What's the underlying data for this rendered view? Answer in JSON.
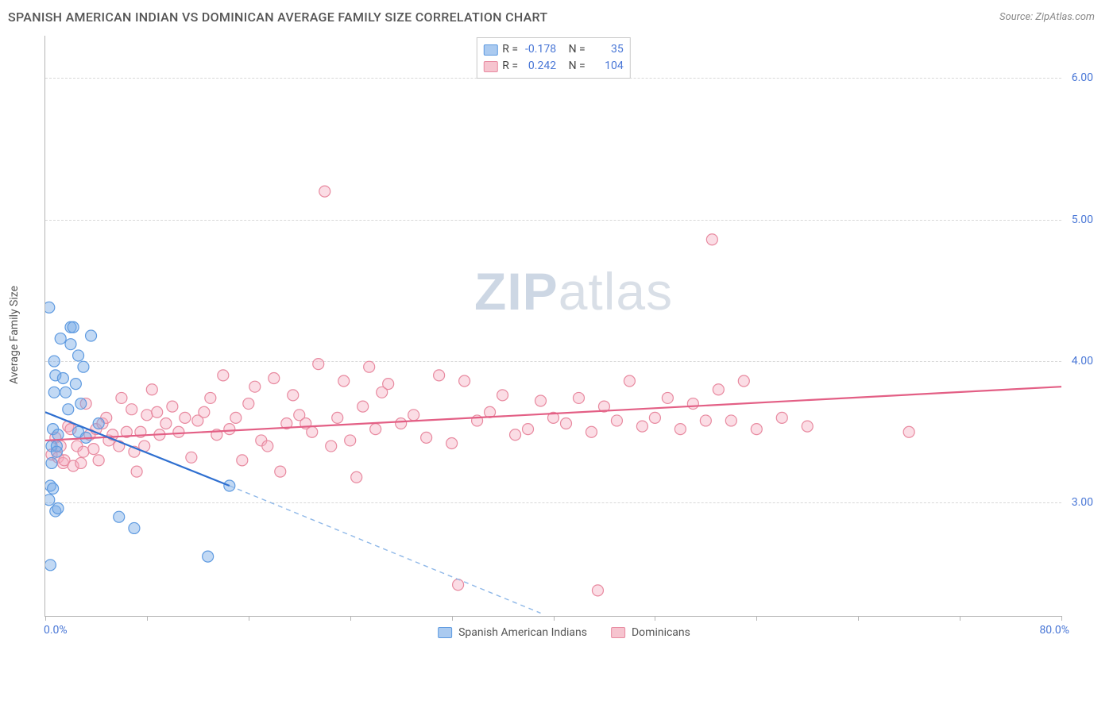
{
  "header": {
    "title": "SPANISH AMERICAN INDIAN VS DOMINICAN AVERAGE FAMILY SIZE CORRELATION CHART",
    "source": "Source: ZipAtlas.com"
  },
  "watermark": {
    "prefix": "ZIP",
    "suffix": "atlas"
  },
  "chart": {
    "type": "scatter",
    "y_label": "Average Family Size",
    "x_min_label": "0.0%",
    "x_max_label": "80.0%",
    "xlim": [
      0,
      80
    ],
    "ylim": [
      2.2,
      6.3
    ],
    "y_ticks": [
      3.0,
      4.0,
      5.0,
      6.0
    ],
    "y_tick_labels": [
      "3.00",
      "4.00",
      "5.00",
      "6.00"
    ],
    "x_tick_positions": [
      0,
      8,
      16,
      24,
      32,
      40,
      48,
      56,
      64,
      72,
      80
    ],
    "grid_color": "#d8d8d8",
    "axis_color": "#b5b5b5",
    "background_color": "#ffffff"
  },
  "stats_legend": {
    "rows": [
      {
        "swatch_fill": "#aacaf0",
        "swatch_border": "#5e9ae0",
        "r_label": "R =",
        "r_val": "-0.178",
        "n_label": "N =",
        "n_val": "35"
      },
      {
        "swatch_fill": "#f6c4cf",
        "swatch_border": "#e88aa0",
        "r_label": "R =",
        "r_val": "0.242",
        "n_label": "N =",
        "n_val": "104"
      }
    ]
  },
  "bottom_legend": {
    "items": [
      {
        "swatch_fill": "#aacaf0",
        "swatch_border": "#5e9ae0",
        "label": "Spanish American Indians"
      },
      {
        "swatch_fill": "#f6c4cf",
        "swatch_border": "#e88aa0",
        "label": "Dominicans"
      }
    ]
  },
  "series": {
    "blue": {
      "marker_radius": 7,
      "fill": "rgba(120,170,230,0.45)",
      "stroke": "#5e9ae0",
      "stroke_width": 1.2,
      "trend": {
        "solid": {
          "x1": 0,
          "y1": 3.64,
          "x2": 14.5,
          "y2": 3.12,
          "color": "#2e6fd0",
          "width": 2.2
        },
        "dashed": {
          "x1": 14.5,
          "y1": 3.12,
          "x2": 39,
          "y2": 2.22,
          "color": "#8fb8e8",
          "width": 1.4,
          "dash": "6,5"
        }
      },
      "points": [
        [
          0.3,
          4.38
        ],
        [
          0.3,
          3.02
        ],
        [
          0.4,
          2.56
        ],
        [
          0.4,
          3.12
        ],
        [
          0.5,
          3.28
        ],
        [
          0.5,
          3.4
        ],
        [
          0.6,
          3.1
        ],
        [
          0.6,
          3.52
        ],
        [
          0.7,
          3.78
        ],
        [
          0.7,
          4.0
        ],
        [
          0.8,
          2.94
        ],
        [
          0.8,
          3.9
        ],
        [
          0.9,
          3.4
        ],
        [
          0.9,
          3.36
        ],
        [
          1.0,
          3.48
        ],
        [
          1.0,
          2.96
        ],
        [
          1.2,
          4.16
        ],
        [
          1.4,
          3.88
        ],
        [
          1.6,
          3.78
        ],
        [
          1.8,
          3.66
        ],
        [
          2.0,
          4.12
        ],
        [
          2.0,
          4.24
        ],
        [
          2.2,
          4.24
        ],
        [
          2.4,
          3.84
        ],
        [
          2.6,
          4.04
        ],
        [
          2.6,
          3.5
        ],
        [
          2.8,
          3.7
        ],
        [
          3.0,
          3.96
        ],
        [
          3.2,
          3.46
        ],
        [
          3.6,
          4.18
        ],
        [
          4.2,
          3.56
        ],
        [
          5.8,
          2.9
        ],
        [
          7.0,
          2.82
        ],
        [
          12.8,
          2.62
        ],
        [
          14.5,
          3.12
        ]
      ]
    },
    "pink": {
      "marker_radius": 7,
      "fill": "rgba(244,170,190,0.40)",
      "stroke": "#e88aa0",
      "stroke_width": 1.2,
      "trend": {
        "solid": {
          "x1": 0,
          "y1": 3.44,
          "x2": 80,
          "y2": 3.82,
          "color": "#e35f85",
          "width": 2.2
        }
      },
      "points": [
        [
          0.5,
          3.34
        ],
        [
          0.8,
          3.46
        ],
        [
          1.0,
          3.32
        ],
        [
          1.2,
          3.4
        ],
        [
          1.4,
          3.28
        ],
        [
          1.5,
          3.3
        ],
        [
          1.8,
          3.54
        ],
        [
          2.0,
          3.52
        ],
        [
          2.2,
          3.26
        ],
        [
          2.5,
          3.4
        ],
        [
          2.8,
          3.28
        ],
        [
          3.0,
          3.36
        ],
        [
          3.2,
          3.7
        ],
        [
          3.5,
          3.48
        ],
        [
          3.8,
          3.38
        ],
        [
          4.0,
          3.52
        ],
        [
          4.2,
          3.3
        ],
        [
          4.5,
          3.56
        ],
        [
          4.8,
          3.6
        ],
        [
          5.0,
          3.44
        ],
        [
          5.3,
          3.48
        ],
        [
          5.8,
          3.4
        ],
        [
          6.0,
          3.74
        ],
        [
          6.4,
          3.5
        ],
        [
          6.8,
          3.66
        ],
        [
          7.0,
          3.36
        ],
        [
          7.2,
          3.22
        ],
        [
          7.5,
          3.5
        ],
        [
          7.8,
          3.4
        ],
        [
          8.0,
          3.62
        ],
        [
          8.4,
          3.8
        ],
        [
          8.8,
          3.64
        ],
        [
          9.0,
          3.48
        ],
        [
          9.5,
          3.56
        ],
        [
          10.0,
          3.68
        ],
        [
          10.5,
          3.5
        ],
        [
          11.0,
          3.6
        ],
        [
          11.5,
          3.32
        ],
        [
          12.0,
          3.58
        ],
        [
          12.5,
          3.64
        ],
        [
          13.0,
          3.74
        ],
        [
          13.5,
          3.48
        ],
        [
          14.0,
          3.9
        ],
        [
          14.5,
          3.52
        ],
        [
          15.0,
          3.6
        ],
        [
          15.5,
          3.3
        ],
        [
          16.0,
          3.7
        ],
        [
          16.5,
          3.82
        ],
        [
          17.0,
          3.44
        ],
        [
          17.5,
          3.4
        ],
        [
          18.0,
          3.88
        ],
        [
          18.5,
          3.22
        ],
        [
          19.0,
          3.56
        ],
        [
          19.5,
          3.76
        ],
        [
          20.0,
          3.62
        ],
        [
          20.5,
          3.56
        ],
        [
          21.0,
          3.5
        ],
        [
          21.5,
          3.98
        ],
        [
          22.0,
          5.2
        ],
        [
          22.5,
          3.4
        ],
        [
          23.0,
          3.6
        ],
        [
          23.5,
          3.86
        ],
        [
          24.0,
          3.44
        ],
        [
          24.5,
          3.18
        ],
        [
          25.0,
          3.68
        ],
        [
          25.5,
          3.96
        ],
        [
          26.0,
          3.52
        ],
        [
          26.5,
          3.78
        ],
        [
          27.0,
          3.84
        ],
        [
          28.0,
          3.56
        ],
        [
          29.0,
          3.62
        ],
        [
          30.0,
          3.46
        ],
        [
          31.0,
          3.9
        ],
        [
          32.0,
          3.42
        ],
        [
          32.5,
          2.42
        ],
        [
          33.0,
          3.86
        ],
        [
          34.0,
          3.58
        ],
        [
          35.0,
          3.64
        ],
        [
          36.0,
          3.76
        ],
        [
          37.0,
          3.48
        ],
        [
          38.0,
          3.52
        ],
        [
          39.0,
          3.72
        ],
        [
          40.0,
          3.6
        ],
        [
          41.0,
          3.56
        ],
        [
          42.0,
          3.74
        ],
        [
          43.0,
          3.5
        ],
        [
          43.5,
          2.38
        ],
        [
          44.0,
          3.68
        ],
        [
          45.0,
          3.58
        ],
        [
          46.0,
          3.86
        ],
        [
          47.0,
          3.54
        ],
        [
          48.0,
          3.6
        ],
        [
          49.0,
          3.74
        ],
        [
          50.0,
          3.52
        ],
        [
          51.0,
          3.7
        ],
        [
          52.0,
          3.58
        ],
        [
          52.5,
          4.86
        ],
        [
          53.0,
          3.8
        ],
        [
          54.0,
          3.58
        ],
        [
          55.0,
          3.86
        ],
        [
          56.0,
          3.52
        ],
        [
          58.0,
          3.6
        ],
        [
          60.0,
          3.54
        ],
        [
          68.0,
          3.5
        ]
      ]
    }
  }
}
